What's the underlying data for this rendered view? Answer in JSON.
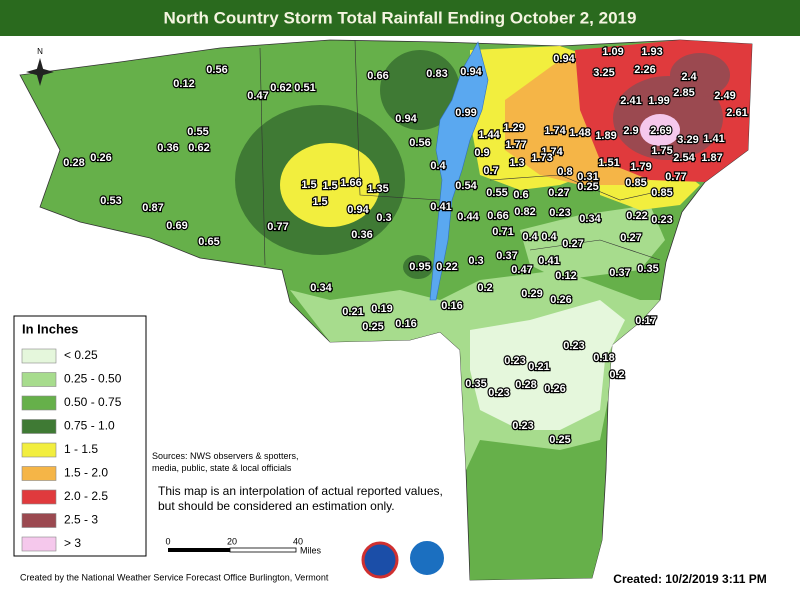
{
  "title": "North Country Storm Total Rainfall Ending October 2, 2019",
  "compass": "N",
  "legend": {
    "title": "In Inches",
    "items": [
      {
        "label": "< 0.25",
        "color": "#e5f7dc"
      },
      {
        "label": "0.25 - 0.50",
        "color": "#a7dc8d"
      },
      {
        "label": "0.50 - 0.75",
        "color": "#66b04a"
      },
      {
        "label": "0.75 - 1.0",
        "color": "#3f7a34"
      },
      {
        "label": "1 - 1.5",
        "color": "#f2ee3e"
      },
      {
        "label": "1.5 - 2.0",
        "color": "#f5b547"
      },
      {
        "label": "2.0 - 2.5",
        "color": "#e03a3d"
      },
      {
        "label": "2.5 - 3",
        "color": "#9b4950"
      },
      {
        "label": "> 3",
        "color": "#f5c8ec"
      }
    ]
  },
  "sources": [
    "Sources: NWS observers & spotters,",
    "media, public, state & local officials"
  ],
  "disclaimer": "This map is an interpolation of actual reported values, but should be considered an estimation only.",
  "scale": {
    "ticks": [
      0,
      20,
      40
    ],
    "unit": "Miles"
  },
  "credit": "Created by the National Weather Service Forecast Office Burlington, Vermont",
  "created": "Created: 10/2/2019 3:11 PM",
  "stations": [
    0.56,
    0.12,
    0.47,
    0.62,
    0.51,
    0.66,
    0.83,
    0.94,
    0.94,
    1.09,
    1.93,
    3.25,
    2.26,
    2.4,
    2.85,
    2.49,
    2.41,
    1.99,
    2.61,
    0.99,
    0.94,
    0.55,
    0.36,
    0.62,
    0.28,
    0.26,
    1.29,
    1.44,
    1.74,
    1.48,
    1.89,
    2.9,
    2.69,
    3.29,
    1.41,
    0.56,
    0.9,
    1.77,
    1.74,
    1.75,
    2.54,
    1.87,
    0.4,
    0.7,
    1.3,
    1.73,
    1.51,
    1.79,
    0.8,
    0.77,
    0.85,
    0.31,
    0.85,
    1.5,
    1.5,
    1.66,
    1.35,
    1.5,
    0.53,
    0.87,
    0.69,
    0.65,
    0.54,
    0.55,
    0.6,
    0.27,
    0.25,
    0.41,
    0.94,
    0.3,
    0.82,
    0.23,
    0.34,
    0.22,
    0.23,
    0.77,
    0.44,
    0.66,
    0.71,
    0.36,
    0.4,
    0.4,
    0.27,
    0.27,
    0.95,
    0.22,
    0.3,
    0.37,
    0.41,
    0.47,
    0.12,
    0.37,
    0.35,
    0.34,
    0.2,
    0.29,
    0.26,
    0.16,
    0.21,
    0.19,
    0.25,
    0.16,
    0.17,
    0.23,
    0.18,
    0.23,
    0.21,
    0.2,
    0.35,
    0.28,
    0.26,
    0.23,
    0.23,
    0.25
  ]
}
